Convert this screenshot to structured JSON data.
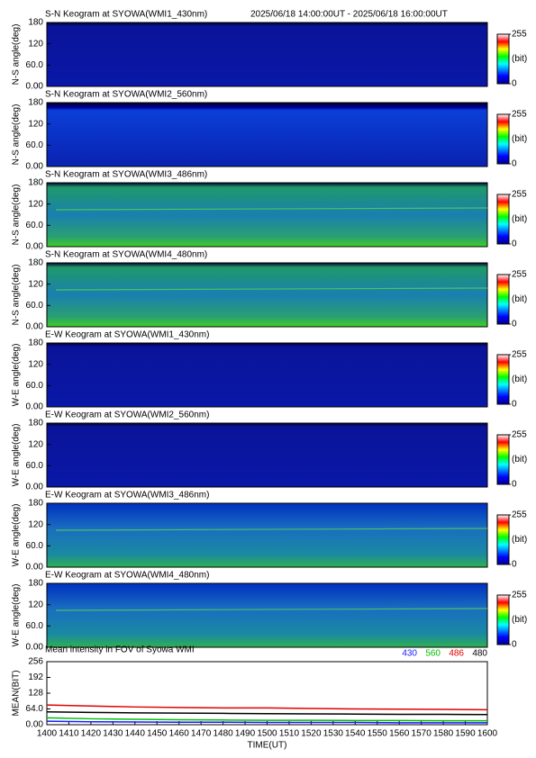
{
  "chart_data": [
    {
      "type": "heatmap",
      "title": "S-N Keogram at SYOWA(WMI1_430nm)",
      "subtitle": "2025/06/18 14:00:00UT - 2025/06/18 16:00:00UT",
      "ylabel": "N-S angle(deg)",
      "ylim": [
        0,
        180
      ],
      "yticks": [
        {
          "value": 0,
          "label": "0.00"
        },
        {
          "value": 60,
          "label": "60.0"
        },
        120,
        180
      ],
      "colormap": "jet",
      "clim": [
        0,
        255
      ],
      "cticks": [
        0,
        255
      ],
      "clabel": "(bit)"
    },
    {
      "type": "heatmap",
      "title": "S-N Keogram at SYOWA(WMI2_560nm)",
      "ylabel": "N-S angle(deg)",
      "ylim": [
        0,
        180
      ],
      "yticks": [
        {
          "value": 0,
          "label": "0.00"
        },
        {
          "value": 60,
          "label": "60.0"
        },
        120,
        180
      ],
      "colormap": "jet",
      "clim": [
        0,
        255
      ],
      "cticks": [
        0,
        255
      ],
      "clabel": "(bit)"
    },
    {
      "type": "heatmap",
      "title": "S-N Keogram at SYOWA(WMI3_486nm)",
      "ylabel": "N-S angle(deg)",
      "ylim": [
        0,
        180
      ],
      "yticks": [
        {
          "value": 0,
          "label": "0.00"
        },
        {
          "value": 60,
          "label": "60.0"
        },
        120,
        180
      ],
      "colormap": "jet",
      "clim": [
        0,
        255
      ],
      "cticks": [
        0,
        255
      ],
      "clabel": "(bit)"
    },
    {
      "type": "heatmap",
      "title": "S-N Keogram at SYOWA(WMI4_480nm)",
      "ylabel": "N-S angle(deg)",
      "ylim": [
        0,
        180
      ],
      "yticks": [
        {
          "value": 0,
          "label": "0.00"
        },
        {
          "value": 60,
          "label": "60.0"
        },
        120,
        180
      ],
      "colormap": "jet",
      "clim": [
        0,
        255
      ],
      "cticks": [
        0,
        255
      ],
      "clabel": "(bit)"
    },
    {
      "type": "heatmap",
      "title": "E-W Keogram at SYOWA(WMI1_430nm)",
      "ylabel": "W-E angle(deg)",
      "ylim": [
        0,
        180
      ],
      "yticks": [
        {
          "value": 0,
          "label": "0.00"
        },
        {
          "value": 60,
          "label": "60.0"
        },
        120,
        180
      ],
      "colormap": "jet",
      "clim": [
        0,
        255
      ],
      "cticks": [
        0,
        255
      ],
      "clabel": "(bit)"
    },
    {
      "type": "heatmap",
      "title": "E-W Keogram at SYOWA(WMI2_560nm)",
      "ylabel": "W-E angle(deg)",
      "ylim": [
        0,
        180
      ],
      "yticks": [
        {
          "value": 0,
          "label": "0.00"
        },
        {
          "value": 60,
          "label": "60.0"
        },
        120,
        180
      ],
      "colormap": "jet",
      "clim": [
        0,
        255
      ],
      "cticks": [
        0,
        255
      ],
      "clabel": "(bit)"
    },
    {
      "type": "heatmap",
      "title": "E-W Keogram at SYOWA(WMI3_486nm)",
      "ylabel": "W-E angle(deg)",
      "ylim": [
        0,
        180
      ],
      "yticks": [
        {
          "value": 0,
          "label": "0.00"
        },
        {
          "value": 60,
          "label": "60.0"
        },
        120,
        180
      ],
      "colormap": "jet",
      "clim": [
        0,
        255
      ],
      "cticks": [
        0,
        255
      ],
      "clabel": "(bit)"
    },
    {
      "type": "heatmap",
      "title": "E-W Keogram at SYOWA(WMI4_480nm)",
      "ylabel": "W-E angle(deg)",
      "ylim": [
        0,
        180
      ],
      "yticks": [
        {
          "value": 0,
          "label": "0.00"
        },
        {
          "value": 60,
          "label": "60.0"
        },
        120,
        180
      ],
      "colormap": "jet",
      "clim": [
        0,
        255
      ],
      "cticks": [
        0,
        255
      ],
      "clabel": "(bit)"
    },
    {
      "type": "line",
      "title": "Mean intensity in FOV of Syowa WMI",
      "xlabel": "TIME(UT)",
      "ylabel": "MEAN(BIT)",
      "x": [
        1400,
        1420,
        1440,
        1460,
        1480,
        1500,
        1520,
        1540,
        1560,
        1580,
        1600
      ],
      "xlim": [
        1400,
        1600
      ],
      "xticks": [
        1400,
        1410,
        1420,
        1430,
        1440,
        1450,
        1460,
        1470,
        1480,
        1490,
        1500,
        1510,
        1520,
        1530,
        1540,
        1550,
        1560,
        1570,
        1580,
        1590,
        1600
      ],
      "ylim": [
        0,
        256
      ],
      "yticks": [
        {
          "value": 0,
          "label": "0.00"
        },
        {
          "value": 64,
          "label": "64.0"
        },
        128,
        192,
        256
      ],
      "series": [
        {
          "name": "430",
          "color": "#1a1aff",
          "values": [
            14,
            12,
            11,
            10,
            10,
            9,
            9,
            9,
            8,
            8,
            8
          ]
        },
        {
          "name": "560",
          "color": "#00c000",
          "values": [
            28,
            24,
            22,
            20,
            19,
            18,
            18,
            17,
            17,
            16,
            16
          ]
        },
        {
          "name": "486",
          "color": "#e00000",
          "values": [
            80,
            76,
            72,
            70,
            68,
            68,
            66,
            64,
            63,
            62,
            61
          ]
        },
        {
          "name": "480",
          "color": "#000000",
          "values": [
            52,
            50,
            48,
            47,
            46,
            45,
            44,
            43,
            42,
            42,
            41
          ]
        }
      ]
    }
  ]
}
